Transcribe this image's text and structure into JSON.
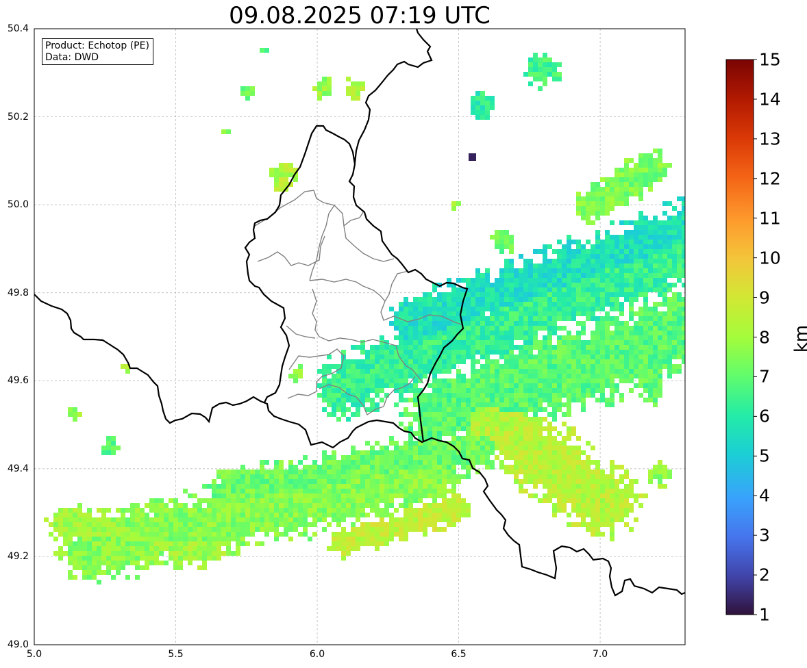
{
  "title": "09.08.2025 07:19 UTC",
  "info": {
    "product": "Product: Echotop (PE)",
    "source": "Data: DWD"
  },
  "map": {
    "x_ticks": [
      "5.0",
      "5.5",
      "6.0",
      "6.5",
      "7.0"
    ],
    "y_ticks": [
      "50.4",
      "50.2",
      "50.0",
      "49.8",
      "49.6",
      "49.4",
      "49.2",
      "49.0"
    ],
    "lon_range": [
      5.0,
      7.3
    ],
    "lat_range": [
      49.0,
      50.4
    ],
    "grid": true,
    "colors": {
      "national_border": "#000000",
      "district_border": "#808080",
      "grid": "#b0b0b0"
    }
  },
  "colorbar": {
    "label": "km",
    "ticks": [
      "15",
      "14",
      "13",
      "12",
      "11",
      "10",
      "9",
      "8",
      "7",
      "6",
      "5",
      "4",
      "3",
      "2",
      "1"
    ],
    "range": [
      1,
      15
    ],
    "colormap": "turbo"
  }
}
